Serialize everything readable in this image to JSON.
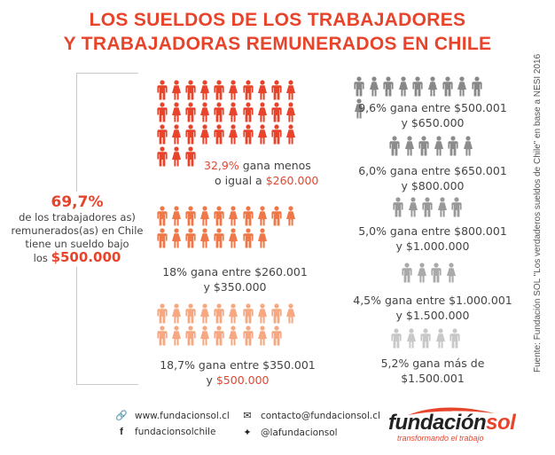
{
  "title": {
    "line1": "LOS SUELDOS DE LOS TRABAJADORES",
    "line2": "Y TRABAJADORAS REMUNERADOS EN CHILE"
  },
  "summary": {
    "percent": "69,7%",
    "line1": "de los trabajadores as)",
    "line2": "remunerados(as) en Chile",
    "line3": "tiene un sueldo bajo",
    "line4_prefix": "los ",
    "amount": "$500.000"
  },
  "left_groups": [
    {
      "count": 33,
      "color": "#e8442c",
      "pct": "32,9%",
      "text1": " gana menos",
      "text2": "o igual a ",
      "amount": "$260.000"
    },
    {
      "count": 18,
      "color": "#f07848",
      "text1": "18% gana entre $260.001",
      "text2": "y $350.000"
    },
    {
      "count": 19,
      "color": "#f5a882",
      "text1": "18,7% gana entre $350.001",
      "text2_prefix": "y ",
      "amount": "$500.000"
    }
  ],
  "right_groups": [
    {
      "count": 10,
      "color": "#888888",
      "text1": "9,6% gana entre $500.001",
      "text2": "y $650.000"
    },
    {
      "count": 6,
      "color": "#8c8c8c",
      "text1": "6,0% gana entre $650.001",
      "text2": "y $800.000"
    },
    {
      "count": 5,
      "color": "#999999",
      "text1": "5,0% gana entre $800.001",
      "text2": "y $1.000.000"
    },
    {
      "count": 4,
      "color": "#aaaaaa",
      "text1": "4,5% gana entre $1.000.001",
      "text2": "y $1.500.000"
    },
    {
      "count": 5,
      "color": "#c8c8c8",
      "text1": "5,2% gana más de",
      "text2": "$1.500.001"
    }
  ],
  "source": "Fuente: Fundación SOL \"Los verdaderos sueldos de Chile\" en base a NESI 2016",
  "footer": {
    "website": "www.fundacionsol.cl",
    "email": "contacto@fundacionsol.cl",
    "facebook": "fundacionsolchile",
    "twitter": "@lafundacionsol",
    "logo_main": "fundación",
    "logo_accent": "sol",
    "logo_tagline": "transformando el trabajo"
  }
}
